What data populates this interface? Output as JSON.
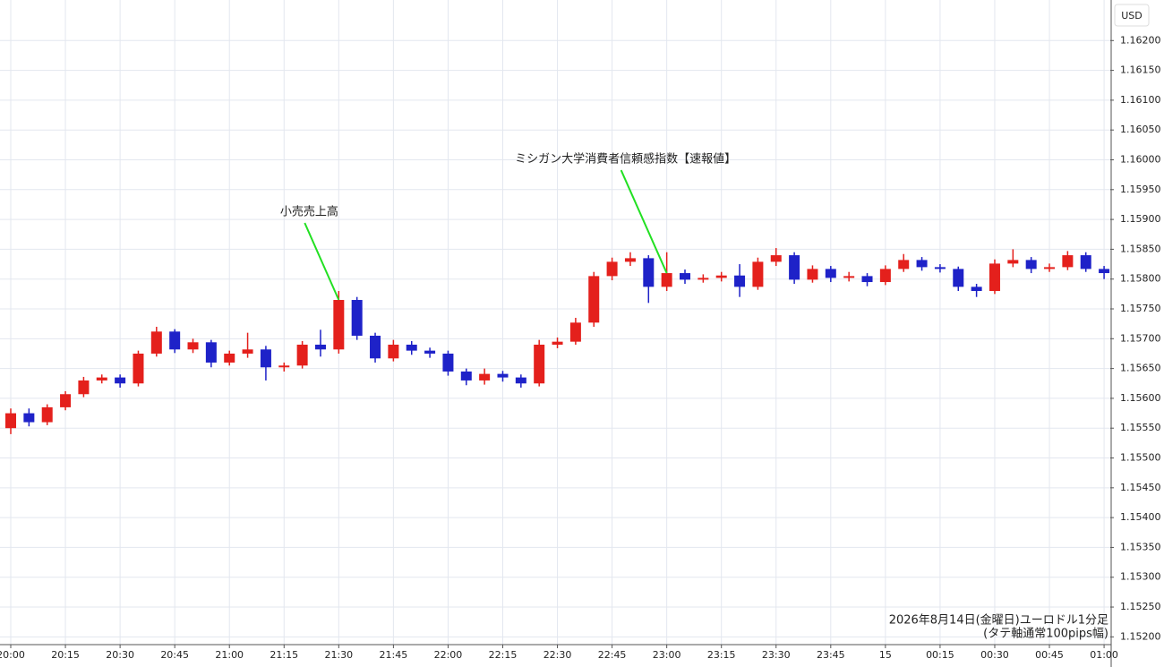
{
  "chart_data": {
    "type": "candlestick",
    "currency": "USD",
    "footnote": [
      "2026年8月14日(金曜日)ユーロドル1分足",
      "(タテ軸通常100pips幅)"
    ],
    "up_color": "#e4201c",
    "down_color": "#1e22c8",
    "grid": true,
    "xlim": [
      -2.95,
      301.7
    ],
    "xticks": [
      {
        "value": 0,
        "label": "20:00"
      },
      {
        "value": 15,
        "label": "20:15"
      },
      {
        "value": 30,
        "label": "20:30"
      },
      {
        "value": 45,
        "label": "20:45"
      },
      {
        "value": 60,
        "label": "21:00"
      },
      {
        "value": 75,
        "label": "21:15"
      },
      {
        "value": 90,
        "label": "21:30"
      },
      {
        "value": 105,
        "label": "21:45"
      },
      {
        "value": 120,
        "label": "22:00"
      },
      {
        "value": 135,
        "label": "22:15"
      },
      {
        "value": 150,
        "label": "22:30"
      },
      {
        "value": 165,
        "label": "22:45"
      },
      {
        "value": 180,
        "label": "23:00"
      },
      {
        "value": 195,
        "label": "23:15"
      },
      {
        "value": 210,
        "label": "23:30"
      },
      {
        "value": 225,
        "label": "23:45"
      },
      {
        "value": 240,
        "label": "15"
      },
      {
        "value": 255,
        "label": "00:15"
      },
      {
        "value": 270,
        "label": "00:30"
      },
      {
        "value": 285,
        "label": "00:45"
      },
      {
        "value": 300,
        "label": "01:00"
      }
    ],
    "ylim": [
      1.15187,
      1.16268
    ],
    "yticks": [
      {
        "value": 1.152,
        "label": "1.15200"
      },
      {
        "value": 1.1525,
        "label": "1.15250"
      },
      {
        "value": 1.153,
        "label": "1.15300"
      },
      {
        "value": 1.1535,
        "label": "1.15350"
      },
      {
        "value": 1.154,
        "label": "1.15400"
      },
      {
        "value": 1.1545,
        "label": "1.15450"
      },
      {
        "value": 1.155,
        "label": "1.15500"
      },
      {
        "value": 1.1555,
        "label": "1.15550"
      },
      {
        "value": 1.156,
        "label": "1.15600"
      },
      {
        "value": 1.1565,
        "label": "1.15650"
      },
      {
        "value": 1.157,
        "label": "1.15700"
      },
      {
        "value": 1.1575,
        "label": "1.15750"
      },
      {
        "value": 1.158,
        "label": "1.15800"
      },
      {
        "value": 1.1585,
        "label": "1.15850"
      },
      {
        "value": 1.159,
        "label": "1.15900"
      },
      {
        "value": 1.1595,
        "label": "1.15950"
      },
      {
        "value": 1.16,
        "label": "1.16000"
      },
      {
        "value": 1.1605,
        "label": "1.16050"
      },
      {
        "value": 1.161,
        "label": "1.16100"
      },
      {
        "value": 1.1615,
        "label": "1.16150"
      },
      {
        "value": 1.162,
        "label": "1.16200"
      }
    ],
    "x": [
      0,
      5,
      10,
      15,
      20,
      25,
      30,
      35,
      40,
      45,
      50,
      55,
      60,
      65,
      70,
      75,
      80,
      85,
      90,
      95,
      100,
      105,
      110,
      115,
      120,
      125,
      130,
      135,
      140,
      145,
      150,
      155,
      160,
      165,
      170,
      175,
      180,
      185,
      190,
      195,
      200,
      205,
      210,
      215,
      220,
      225,
      230,
      235,
      240,
      245,
      250,
      255,
      260,
      265,
      270,
      275,
      280,
      285,
      290,
      295,
      300
    ],
    "open": [
      1.1555,
      1.15575,
      1.1556,
      1.15585,
      1.15607,
      1.1563,
      1.15635,
      1.15625,
      1.15675,
      1.15712,
      1.15682,
      1.15694,
      1.1566,
      1.15675,
      1.15682,
      1.15652,
      1.15655,
      1.1569,
      1.15682,
      1.15765,
      1.15705,
      1.15667,
      1.1569,
      1.1568,
      1.15675,
      1.15645,
      1.1563,
      1.15641,
      1.15635,
      1.15625,
      1.1569,
      1.15695,
      1.15727,
      1.15805,
      1.15829,
      1.15835,
      1.15787,
      1.1581,
      1.15799,
      1.15802,
      1.15806,
      1.15787,
      1.15829,
      1.1584,
      1.15799,
      1.15817,
      1.15802,
      1.15805,
      1.15795,
      1.15817,
      1.15832,
      1.1582,
      1.15817,
      1.15787,
      1.1578,
      1.15826,
      1.15832,
      1.15817,
      1.1582,
      1.1584,
      1.15817
    ],
    "high": [
      1.15583,
      1.15583,
      1.1559,
      1.15612,
      1.15636,
      1.1564,
      1.1564,
      1.1568,
      1.1572,
      1.15716,
      1.157,
      1.15698,
      1.1568,
      1.1571,
      1.15688,
      1.1566,
      1.15696,
      1.15715,
      1.1578,
      1.1577,
      1.1571,
      1.15698,
      1.15696,
      1.15685,
      1.1568,
      1.1565,
      1.1565,
      1.15646,
      1.1564,
      1.15698,
      1.15702,
      1.15735,
      1.15812,
      1.15836,
      1.15845,
      1.1584,
      1.15845,
      1.15816,
      1.15808,
      1.15812,
      1.15825,
      1.15836,
      1.15852,
      1.15845,
      1.15823,
      1.15822,
      1.15812,
      1.1581,
      1.15823,
      1.15842,
      1.15837,
      1.15825,
      1.15821,
      1.15792,
      1.15833,
      1.1585,
      1.15837,
      1.15826,
      1.15847,
      1.15845,
      1.15822
    ],
    "low": [
      1.1554,
      1.15553,
      1.15555,
      1.1558,
      1.15602,
      1.15625,
      1.15618,
      1.1562,
      1.1567,
      1.15676,
      1.15676,
      1.15652,
      1.15655,
      1.15668,
      1.1563,
      1.15645,
      1.1565,
      1.1567,
      1.15675,
      1.15698,
      1.1566,
      1.15662,
      1.15673,
      1.15668,
      1.15638,
      1.15622,
      1.15623,
      1.15628,
      1.15618,
      1.1562,
      1.15684,
      1.1569,
      1.1572,
      1.15798,
      1.15822,
      1.1576,
      1.1578,
      1.15792,
      1.15794,
      1.15796,
      1.1577,
      1.15782,
      1.15822,
      1.15792,
      1.15794,
      1.15795,
      1.15796,
      1.15788,
      1.1579,
      1.15812,
      1.15814,
      1.15811,
      1.1578,
      1.1577,
      1.15775,
      1.1582,
      1.1581,
      1.15812,
      1.15815,
      1.15812,
      1.158
    ],
    "close": [
      1.15575,
      1.1556,
      1.15585,
      1.15607,
      1.1563,
      1.15635,
      1.15625,
      1.15675,
      1.15712,
      1.15682,
      1.15694,
      1.1566,
      1.15675,
      1.15682,
      1.15652,
      1.15655,
      1.1569,
      1.15682,
      1.15765,
      1.15705,
      1.15667,
      1.1569,
      1.1568,
      1.15675,
      1.15645,
      1.1563,
      1.15641,
      1.15635,
      1.15625,
      1.1569,
      1.15695,
      1.15727,
      1.15805,
      1.15829,
      1.15835,
      1.15787,
      1.1581,
      1.15799,
      1.15802,
      1.15806,
      1.15787,
      1.15829,
      1.1584,
      1.15799,
      1.15817,
      1.15802,
      1.15805,
      1.15795,
      1.15817,
      1.15832,
      1.1582,
      1.15817,
      1.15787,
      1.1578,
      1.15826,
      1.15832,
      1.15817,
      1.1582,
      1.1584,
      1.15817,
      1.1581
    ],
    "annotations": [
      {
        "text": "小売売上高",
        "x": 90,
        "y": 1.15765,
        "color": "#22e022"
      },
      {
        "text": "ミシガン大学消費者信頼感指数【速報値】",
        "x": 180,
        "y": 1.1581,
        "color": "#22e022"
      }
    ]
  }
}
